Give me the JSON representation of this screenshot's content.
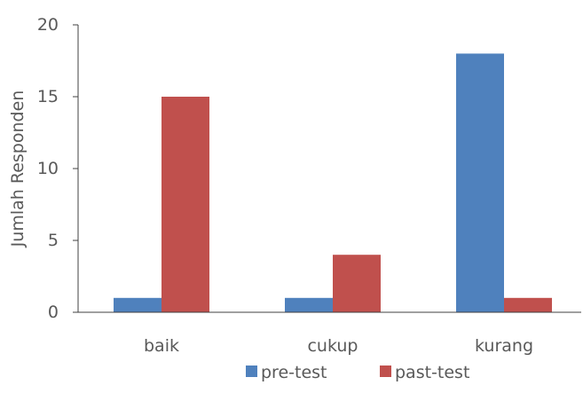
{
  "chart_data": {
    "type": "bar",
    "title": "",
    "xlabel": "",
    "ylabel": "Jumlah Responden",
    "ylim": [
      0,
      20
    ],
    "yticks": [
      0,
      5,
      10,
      15,
      20
    ],
    "grid": false,
    "legend_position": "bottom",
    "categories": [
      "baik",
      "cukup",
      "kurang"
    ],
    "series": [
      {
        "name": "pre-test",
        "color": "#4f81bd",
        "values": [
          1,
          1,
          18
        ]
      },
      {
        "name": "past-test",
        "color": "#c0504d",
        "values": [
          15,
          4,
          1
        ]
      }
    ]
  }
}
